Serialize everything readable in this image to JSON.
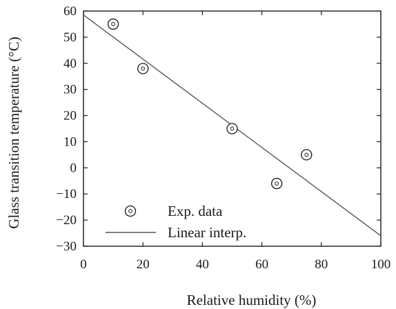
{
  "chart_data": {
    "type": "scatter",
    "xlabel": "Relative humidity (%)",
    "ylabel": "Glass transition temperature (°C)",
    "xlim": [
      0,
      100
    ],
    "ylim": [
      -30,
      60
    ],
    "x_ticks": [
      0,
      20,
      40,
      60,
      80,
      100
    ],
    "y_ticks": [
      -30,
      -20,
      -10,
      0,
      10,
      20,
      30,
      40,
      50,
      60
    ],
    "grid": false,
    "legend_position": "bottom-left",
    "series": [
      {
        "name": "Exp. data",
        "kind": "marker",
        "marker": "double-circle",
        "x": [
          10,
          20,
          50,
          65,
          75
        ],
        "y": [
          55,
          38,
          15,
          -6,
          5
        ]
      },
      {
        "name": "Linear interp.",
        "kind": "line",
        "x": [
          0,
          100
        ],
        "y": [
          58.5,
          -26
        ]
      }
    ],
    "colors": {
      "axes": "#1a1a1a",
      "marker": "#1a1a1a",
      "line": "#555555"
    }
  }
}
